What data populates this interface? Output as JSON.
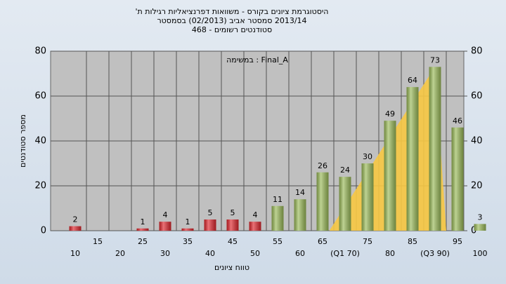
{
  "chart_data": {
    "type": "bar",
    "title": "היסטוגרמת ציונים בקורס - משוואות דפרנציאליות רגילות ת'",
    "subtitle": "2013/14 סמסטר אביב (02/2013) בסמסטר",
    "subtitle2": "סטודנטים רשומים - 468",
    "annotation": "Final_A : במשימה",
    "x_label": "טווח ציונים",
    "y_label": "מספר סטודנטים",
    "categories": [
      "10",
      "15",
      "20",
      "25",
      "30",
      "35",
      "40",
      "45",
      "50",
      "55",
      "60",
      "65",
      "(Q1 70)",
      "75",
      "80",
      "85",
      "(Q3 90)",
      "95",
      "100"
    ],
    "values": [
      2,
      0,
      0,
      1,
      4,
      1,
      5,
      5,
      4,
      11,
      14,
      26,
      24,
      30,
      49,
      64,
      73,
      46,
      3
    ],
    "colors": [
      "#e0262d",
      "#e0262d",
      "#e0262d",
      "#e0262d",
      "#e0262d",
      "#e0262d",
      "#e0262d",
      "#e0262d",
      "#e0262d",
      "#9bbb59",
      "#9bbb59",
      "#9bbb59",
      "#9bbb59",
      "#9bbb59",
      "#9bbb59",
      "#9bbb59",
      "#9bbb59",
      "#9bbb59",
      "#9bbb59"
    ],
    "ylim": [
      0,
      80
    ],
    "yticks": [
      0,
      20,
      40,
      60,
      80
    ],
    "y2lim": [
      0,
      80
    ],
    "y2ticks": [
      0,
      20,
      40,
      60,
      80
    ],
    "grid": true
  }
}
